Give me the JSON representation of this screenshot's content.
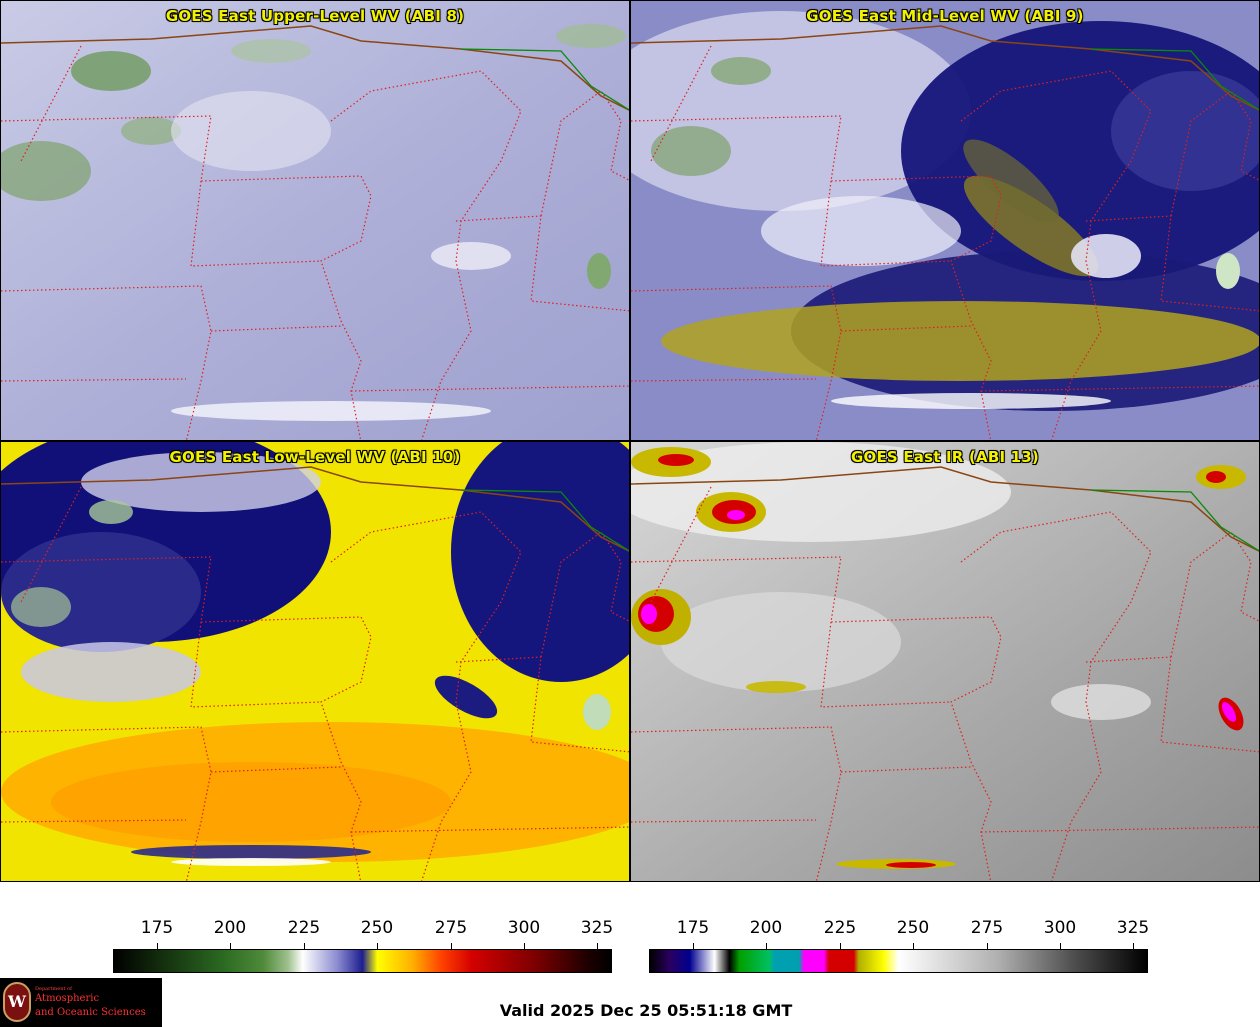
{
  "panels": [
    {
      "title": "GOES East Upper-Level WV (ABI 8)",
      "colormap": "wv"
    },
    {
      "title": "GOES East Mid-Level WV (ABI 9)",
      "colormap": "wv"
    },
    {
      "title": "GOES East Low-Level WV (ABI 10)",
      "colormap": "wv"
    },
    {
      "title": "GOES East IR (ABI 13)",
      "colormap": "ir"
    }
  ],
  "colorbars": [
    {
      "name": "wv",
      "ticks": [
        "175",
        "200",
        "225",
        "250",
        "275",
        "300",
        "325"
      ],
      "min": 160,
      "max": 330
    },
    {
      "name": "ir",
      "ticks": [
        "175",
        "200",
        "225",
        "250",
        "275",
        "300",
        "325"
      ],
      "min": 160,
      "max": 330
    }
  ],
  "logo": {
    "dept_line": "Department of",
    "line1": "Atmospheric",
    "line2": "and Oceanic Sciences",
    "crest_letter": "W"
  },
  "footer": {
    "valid": "Valid 2025 Dec 25 05:51:18 GMT"
  },
  "colors": {
    "title_text": "#f2f200",
    "state_borders": "#e02020",
    "country_border": "#8b4513",
    "canada_line": "#0a8a0a"
  }
}
